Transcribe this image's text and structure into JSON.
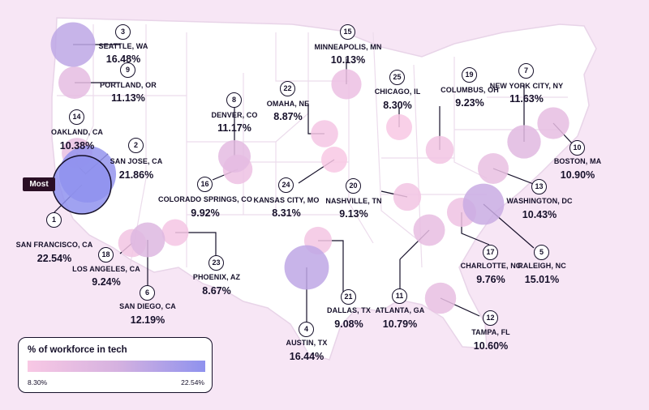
{
  "legend": {
    "title": "% of workforce in tech",
    "min_label": "8.30%",
    "max_label": "22.54%",
    "min_color": "#f8c8e4",
    "max_color": "#8f92ee"
  },
  "most_label": "Most",
  "colors": {
    "background": "#f7e6f5",
    "land": "#ffffff",
    "borders": "#ecdcec",
    "ink": "#16102a",
    "low": "#f8c8e4",
    "mid": "#d6b2e0",
    "high": "#8f92ee"
  },
  "cities": [
    {
      "rank": "1",
      "name": "SAN FRANCISCO, CA",
      "value": "22.54%",
      "pct": 22.54
    },
    {
      "rank": "2",
      "name": "SAN JOSE, CA",
      "value": "21.86%",
      "pct": 21.86
    },
    {
      "rank": "3",
      "name": "SEATTLE, WA",
      "value": "16.48%",
      "pct": 16.48
    },
    {
      "rank": "4",
      "name": "AUSTIN, TX",
      "value": "16.44%",
      "pct": 16.44
    },
    {
      "rank": "5",
      "name": "RALEIGH, NC",
      "value": "15.01%",
      "pct": 15.01
    },
    {
      "rank": "6",
      "name": "SAN DIEGO, CA",
      "value": "12.19%",
      "pct": 12.19
    },
    {
      "rank": "7",
      "name": "NEW YORK CITY, NY",
      "value": "11.63%",
      "pct": 11.63
    },
    {
      "rank": "8",
      "name": "DENVER, CO",
      "value": "11.17%",
      "pct": 11.17
    },
    {
      "rank": "9",
      "name": "PORTLAND, OR",
      "value": "11.13%",
      "pct": 11.13
    },
    {
      "rank": "10",
      "name": "BOSTON, MA",
      "value": "10.90%",
      "pct": 10.9
    },
    {
      "rank": "11",
      "name": "ATLANTA, GA",
      "value": "10.79%",
      "pct": 10.79
    },
    {
      "rank": "12",
      "name": "TAMPA, FL",
      "value": "10.60%",
      "pct": 10.6
    },
    {
      "rank": "13",
      "name": "WASHINGTON, DC",
      "value": "10.43%",
      "pct": 10.43
    },
    {
      "rank": "14",
      "name": "OAKLAND, CA",
      "value": "10.38%",
      "pct": 10.38
    },
    {
      "rank": "15",
      "name": "MINNEAPOLIS, MN",
      "value": "10.13%",
      "pct": 10.13
    },
    {
      "rank": "16",
      "name": "COLORADO SPRINGS, CO",
      "value": "9.92%",
      "pct": 9.92
    },
    {
      "rank": "17",
      "name": "CHARLOTTE, NC",
      "value": "9.76%",
      "pct": 9.76
    },
    {
      "rank": "18",
      "name": "LOS ANGELES, CA",
      "value": "9.24%",
      "pct": 9.24
    },
    {
      "rank": "19",
      "name": "COLUMBUS, OH",
      "value": "9.23%",
      "pct": 9.23
    },
    {
      "rank": "20",
      "name": "NASHVILLE, TN",
      "value": "9.13%",
      "pct": 9.13
    },
    {
      "rank": "21",
      "name": "DALLAS, TX",
      "value": "9.08%",
      "pct": 9.08
    },
    {
      "rank": "22",
      "name": "OMAHA, NE",
      "value": "8.87%",
      "pct": 8.87
    },
    {
      "rank": "23",
      "name": "PHOENIX, AZ",
      "value": "8.67%",
      "pct": 8.67
    },
    {
      "rank": "24",
      "name": "KANSAS CITY, MO",
      "value": "8.31%",
      "pct": 8.31
    },
    {
      "rank": "25",
      "name": "CHICAGO, IL",
      "value": "8.30%",
      "pct": 8.3
    }
  ]
}
